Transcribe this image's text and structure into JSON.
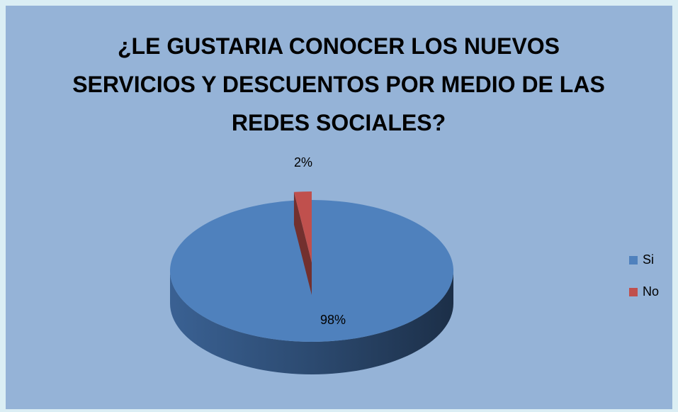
{
  "chart_data": {
    "type": "pie",
    "title": "¿LE GUSTARIA CONOCER LOS NUEVOS SERVICIOS Y DESCUENTOS POR MEDIO DE LAS REDES SOCIALES?",
    "categories": [
      "Si",
      "No"
    ],
    "values": [
      98,
      2
    ],
    "value_labels": [
      "98%",
      "2%"
    ],
    "colors": [
      "#4f81bd",
      "#c0504d"
    ],
    "legend": "right"
  }
}
